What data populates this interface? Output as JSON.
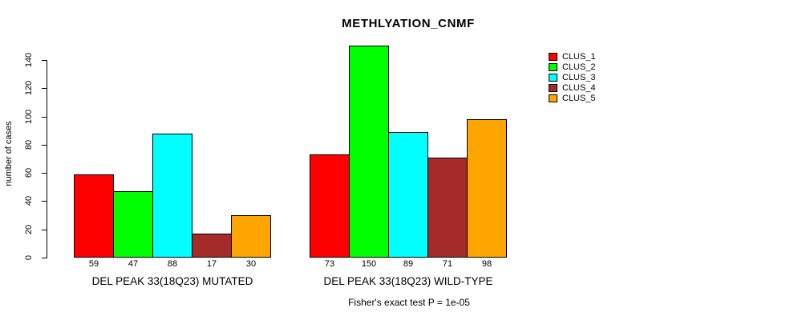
{
  "chart_data": {
    "type": "bar",
    "title": "METHLYATION_CNMF",
    "ylabel": "number of cases",
    "yticks": [
      0,
      20,
      40,
      60,
      80,
      100,
      120,
      140
    ],
    "ylim": [
      0,
      150
    ],
    "grid": false,
    "legend_position": "right",
    "bar_value_labels": true,
    "categories": [
      "DEL PEAK 33(18Q23) MUTATED",
      "DEL PEAK 33(18Q23) WILD-TYPE"
    ],
    "series": [
      {
        "name": "CLUS_1",
        "color": "#FF0000",
        "values": [
          59,
          73
        ]
      },
      {
        "name": "CLUS_2",
        "color": "#00FF00",
        "values": [
          47,
          150
        ]
      },
      {
        "name": "CLUS_3",
        "color": "#00FFFF",
        "values": [
          88,
          89
        ]
      },
      {
        "name": "CLUS_4",
        "color": "#A52A2A",
        "values": [
          17,
          71
        ]
      },
      {
        "name": "CLUS_5",
        "color": "#FFA500",
        "values": [
          30,
          98
        ]
      }
    ],
    "annotation": "Fisher's exact test P = 1e-05"
  }
}
